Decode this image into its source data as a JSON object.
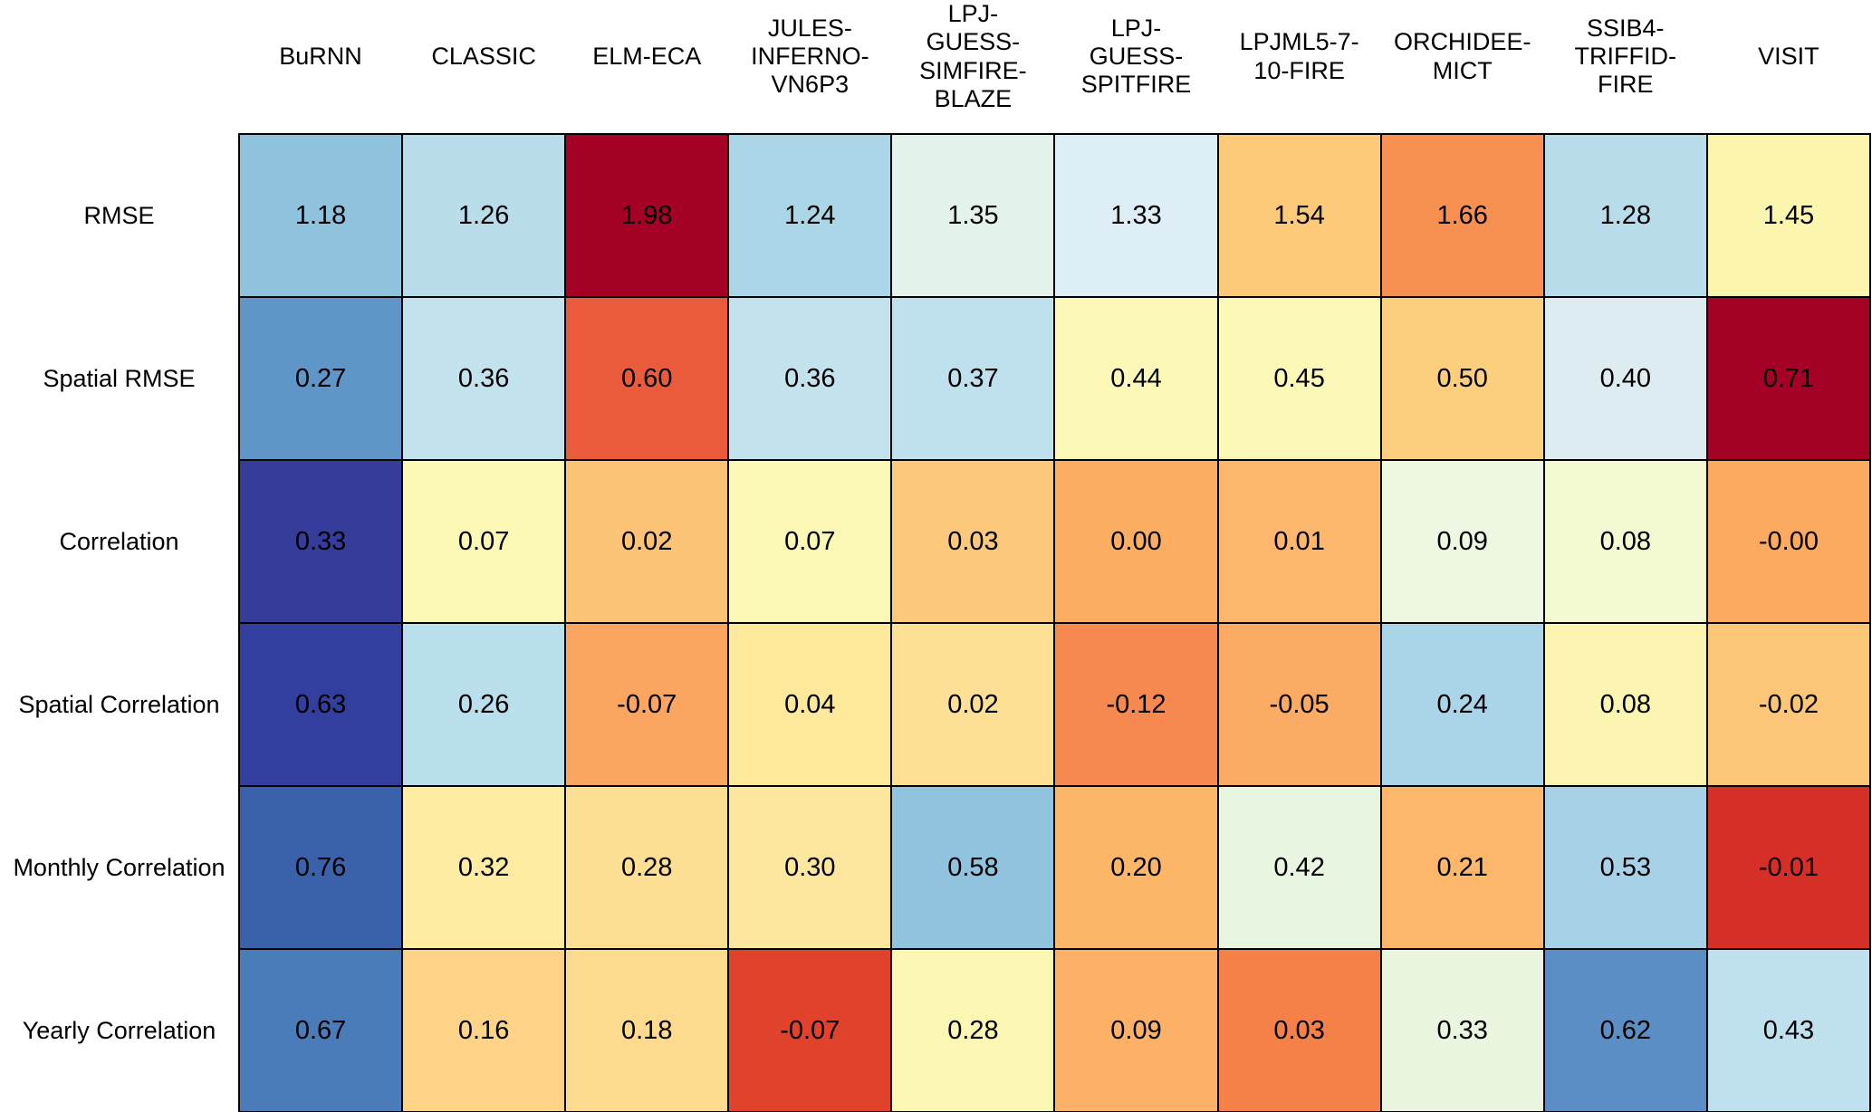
{
  "chart_data": {
    "type": "heatmap",
    "title": "",
    "columns": [
      "BuRNN",
      "CLASSIC",
      "ELM-ECA",
      "JULES-INFERNO-VN6P3",
      "LPJ-GUESS-SIMFIRE-BLAZE",
      "LPJ-GUESS-SPITFIRE",
      "LPJML5-7-10-FIRE",
      "ORCHIDEE-MICT",
      "SSIB4-TRIFFID-FIRE",
      "VISIT"
    ],
    "rows": [
      "RMSE",
      "Spatial RMSE",
      "Correlation",
      "Spatial Correlation",
      "Monthly Correlation",
      "Yearly Correlation"
    ],
    "values": [
      [
        1.18,
        1.26,
        1.98,
        1.24,
        1.35,
        1.33,
        1.54,
        1.66,
        1.28,
        1.45
      ],
      [
        0.27,
        0.36,
        0.6,
        0.36,
        0.37,
        0.44,
        0.45,
        0.5,
        0.4,
        0.71
      ],
      [
        0.33,
        0.07,
        0.02,
        0.07,
        0.03,
        0.0,
        0.01,
        0.09,
        0.08,
        -0.0
      ],
      [
        0.63,
        0.26,
        -0.07,
        0.04,
        0.02,
        -0.12,
        -0.05,
        0.24,
        0.08,
        -0.02
      ],
      [
        0.76,
        0.32,
        0.28,
        0.3,
        0.58,
        0.2,
        0.42,
        0.21,
        0.53,
        -0.01
      ],
      [
        0.67,
        0.16,
        0.18,
        -0.07,
        0.28,
        0.09,
        0.03,
        0.33,
        0.62,
        0.43
      ]
    ],
    "legend": "none",
    "grid": "black cell outlines",
    "colormap": "red-yellow-blue diverging, normalized per row (blue = better, red = worse)"
  },
  "heatmap": {
    "column_header_lines": [
      "BuRNN",
      "CLASSIC",
      "ELM-ECA",
      "JULES-\nINFERNO-\nVN6P3",
      "LPJ-\nGUESS-\nSIMFIRE-\nBLAZE",
      "LPJ-\nGUESS-\nSPITFIRE",
      "LPJML5-7-\n10-FIRE",
      "ORCHIDEE-\nMICT",
      "SSIB4-\nTRIFFID-\nFIRE",
      "VISIT"
    ],
    "row_labels": [
      "RMSE",
      "Spatial RMSE",
      "Correlation",
      "Spatial Correlation",
      "Monthly Correlation",
      "Yearly Correlation"
    ],
    "cell_text": [
      [
        "1.18",
        "1.26",
        "1.98",
        "1.24",
        "1.35",
        "1.33",
        "1.54",
        "1.66",
        "1.28",
        "1.45"
      ],
      [
        "0.27",
        "0.36",
        "0.60",
        "0.36",
        "0.37",
        "0.44",
        "0.45",
        "0.50",
        "0.40",
        "0.71"
      ],
      [
        "0.33",
        "0.07",
        "0.02",
        "0.07",
        "0.03",
        "0.00",
        "0.01",
        "0.09",
        "0.08",
        "-0.00"
      ],
      [
        "0.63",
        "0.26",
        "-0.07",
        "0.04",
        "0.02",
        "-0.12",
        "-0.05",
        "0.24",
        "0.08",
        "-0.02"
      ],
      [
        "0.76",
        "0.32",
        "0.28",
        "0.30",
        "0.58",
        "0.20",
        "0.42",
        "0.21",
        "0.53",
        "-0.01"
      ],
      [
        "0.67",
        "0.16",
        "0.18",
        "-0.07",
        "0.28",
        "0.09",
        "0.03",
        "0.33",
        "0.62",
        "0.43"
      ]
    ],
    "cell_colors": [
      [
        "#8fc2dd",
        "#b9dcea",
        "#a50026",
        "#aad6e8",
        "#e3f3eb",
        "#ddeef6",
        "#fdca79",
        "#f79051",
        "#b9dcea",
        "#fbf5ae"
      ],
      [
        "#6095c7",
        "#c2e2ee",
        "#ea5b3c",
        "#c2e2ee",
        "#bfe0ed",
        "#fcf9b8",
        "#fcf9b8",
        "#fccf7e",
        "#dcecf1",
        "#a50026"
      ],
      [
        "#363c99",
        "#fcf9b7",
        "#fcc377",
        "#fcf9b7",
        "#fcc97c",
        "#fbad62",
        "#fcb76c",
        "#edf7e1",
        "#f3f9d1",
        "#fbaa60"
      ],
      [
        "#333f9e",
        "#b9deec",
        "#fba660",
        "#fde89c",
        "#fde095",
        "#f68950",
        "#fbab63",
        "#aad4e7",
        "#fbf5b1",
        "#fcc678"
      ],
      [
        "#3a62ab",
        "#fdeca1",
        "#fddf93",
        "#fde79e",
        "#90c3de",
        "#fcb668",
        "#e8f5e0",
        "#fcb76a",
        "#a6d1e6",
        "#d62f27"
      ],
      [
        "#4a7cba",
        "#fdd487",
        "#fdda8d",
        "#e0422c",
        "#fcf6b3",
        "#fcb167",
        "#f58148",
        "#e9f5df",
        "#5a8ec4",
        "#bfe0ed"
      ]
    ]
  },
  "colors": {
    "background": "#ffffff",
    "cell_border": "#000000",
    "text": "#000000"
  }
}
